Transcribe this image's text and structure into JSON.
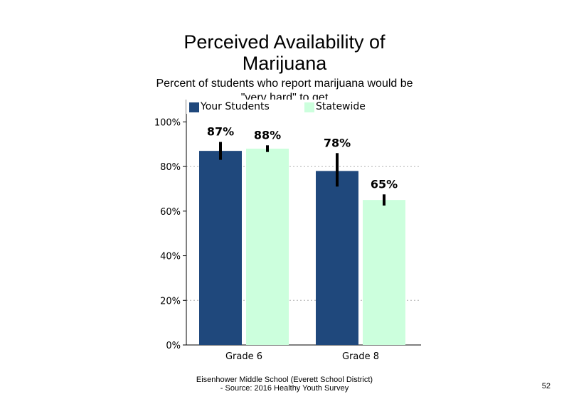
{
  "page": {
    "number": "52"
  },
  "footer": {
    "line1": "Eisenhower Middle School (Everett School District)",
    "line2": "- Source: 2016 Healthy  Youth Survey"
  },
  "chart_data": {
    "type": "bar",
    "title": "Perceived Availability of Marijuana",
    "subtitle": "Percent of students  who report marijuana would be \"very hard\" to get",
    "categories": [
      "Grade 6",
      "Grade 8"
    ],
    "series": [
      {
        "name": "Your Students",
        "color": "#1f487c",
        "values": [
          87,
          78
        ],
        "labels": [
          "87%",
          "78%"
        ],
        "error": [
          [
            83,
            91
          ],
          [
            71,
            86
          ]
        ]
      },
      {
        "name": "Statewide",
        "color": "#ccffdd",
        "values": [
          88,
          65
        ],
        "labels": [
          "88%",
          "65%"
        ],
        "error": [
          [
            86.5,
            89.5
          ],
          [
            62.5,
            67.5
          ]
        ]
      }
    ],
    "ylim": [
      0,
      110
    ],
    "yticks": [
      0,
      20,
      40,
      60,
      80,
      100
    ],
    "ytick_labels": [
      "0%",
      "20%",
      "40%",
      "60%",
      "80%",
      "100%"
    ],
    "grid": "dotted horizontal at 20% and 80%",
    "legend_position": "top"
  }
}
